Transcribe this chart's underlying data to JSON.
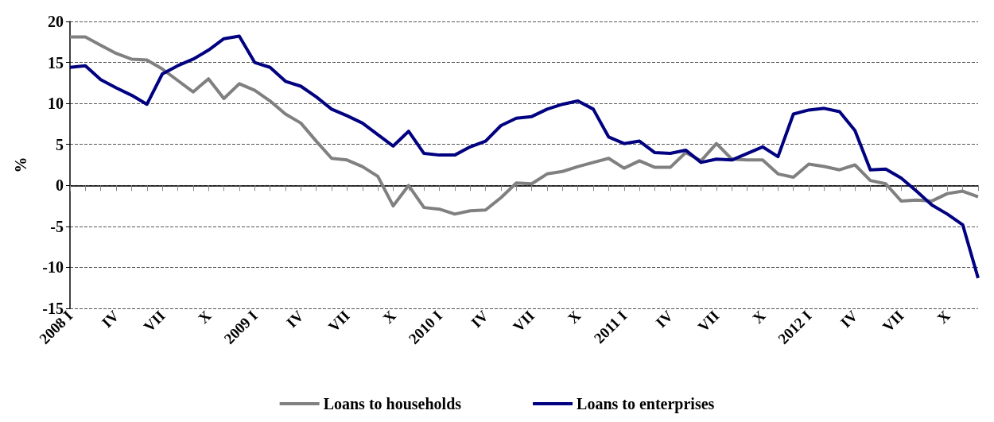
{
  "chart_data": {
    "type": "line",
    "ylabel": "%",
    "categories": [
      "2008 I",
      null,
      null,
      "IV",
      null,
      null,
      "VII",
      null,
      null,
      "X",
      null,
      null,
      "2009 I",
      null,
      null,
      "IV",
      null,
      null,
      "VII",
      null,
      null,
      "X",
      null,
      null,
      "2010 I",
      null,
      null,
      "IV",
      null,
      null,
      "VII",
      null,
      null,
      "X",
      null,
      null,
      "2011 I",
      null,
      null,
      "IV",
      null,
      null,
      "VII",
      null,
      null,
      "X",
      null,
      null,
      "2012 I",
      null,
      null,
      "IV",
      null,
      null,
      "VII",
      null,
      null,
      "X",
      null,
      null
    ],
    "series": [
      {
        "name": "Loans to households",
        "color": "#808080",
        "values": [
          18.1,
          18.1,
          17.1,
          16.1,
          15.4,
          15.3,
          14.2,
          12.8,
          11.4,
          13.0,
          10.6,
          12.4,
          11.6,
          10.3,
          8.7,
          7.6,
          5.4,
          3.3,
          3.1,
          2.3,
          1.1,
          -2.5,
          0,
          -2.7,
          -2.9,
          -3.5,
          -3.1,
          -3.0,
          -1.5,
          0.3,
          0.2,
          1.4,
          1.7,
          2.3,
          2.8,
          3.3,
          2.1,
          3.0,
          2.2,
          2.2,
          4.0,
          3.0,
          5.1,
          3.2,
          3.1,
          3.1,
          1.4,
          1.0,
          2.6,
          2.3,
          1.9,
          2.5,
          0.6,
          0.2,
          -1.9,
          -1.8,
          -1.9,
          -1.0,
          -0.7,
          -1.4
        ]
      },
      {
        "name": "Loans to enterprises",
        "color": "#000080",
        "values": [
          14.4,
          14.6,
          12.9,
          11.9,
          11.0,
          9.9,
          13.6,
          14.6,
          15.4,
          16.5,
          17.9,
          18.2,
          15.0,
          14.4,
          12.7,
          12.1,
          10.8,
          9.3,
          8.5,
          7.6,
          6.2,
          4.8,
          6.6,
          3.9,
          3.7,
          3.7,
          4.7,
          5.4,
          7.3,
          8.2,
          8.4,
          9.3,
          9.9,
          10.3,
          9.3,
          5.9,
          5.1,
          5.4,
          4.0,
          3.9,
          4.3,
          2.8,
          3.2,
          3.1,
          3.9,
          4.7,
          3.5,
          8.7,
          9.2,
          9.4,
          9.0,
          6.7,
          1.9,
          2.0,
          0.9,
          -0.7,
          -2.4,
          -3.5,
          -4.8,
          -11.3
        ]
      }
    ],
    "ylim": [
      -15,
      20
    ],
    "yticks": [
      -15,
      -10,
      -5,
      0,
      5,
      10,
      15,
      20
    ],
    "grid": "y",
    "legend": "bottom",
    "marker": "none",
    "line_style": "solid"
  }
}
